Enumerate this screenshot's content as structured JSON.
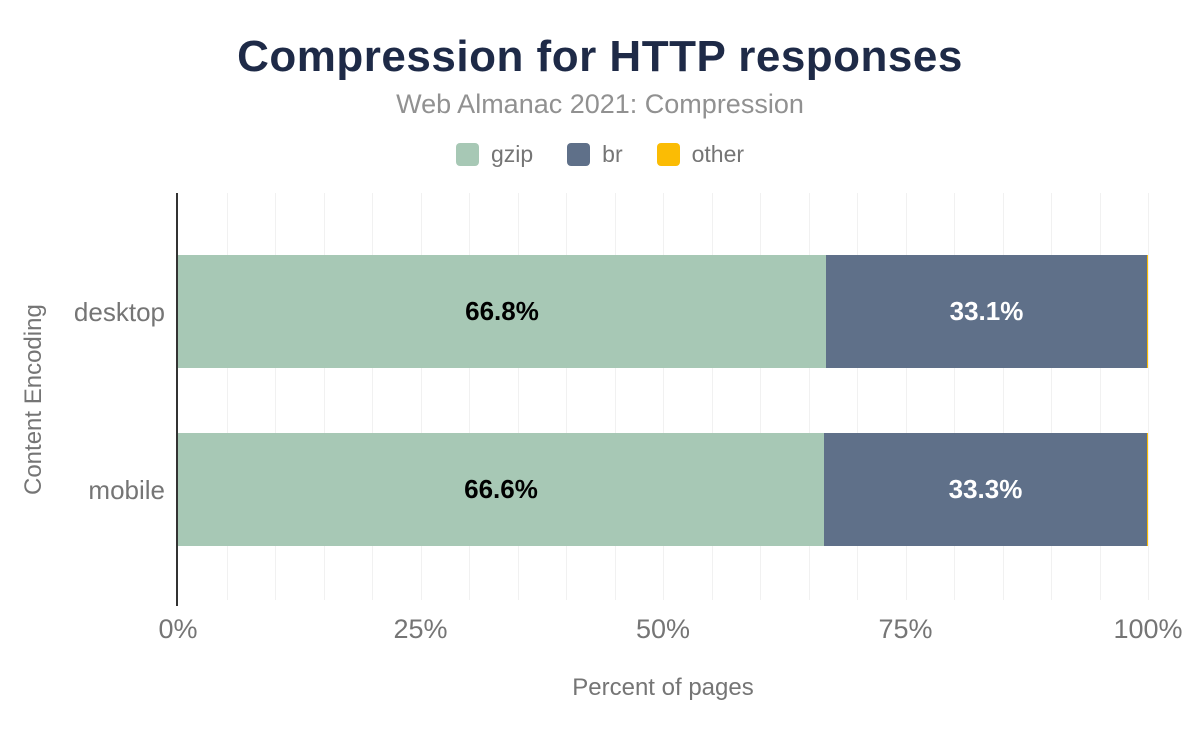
{
  "chart_data": {
    "type": "bar",
    "orientation": "horizontal",
    "stacked": true,
    "title": "Compression for HTTP responses",
    "subtitle": "Web Almanac 2021: Compression",
    "xlabel": "Percent of pages",
    "ylabel": "Content Encoding",
    "xlim": [
      0,
      100
    ],
    "grid": true,
    "grid_step": 5,
    "legend_position": "top",
    "categories": [
      "desktop",
      "mobile"
    ],
    "x_ticks": [
      {
        "label": "0%",
        "value": 0
      },
      {
        "label": "25%",
        "value": 25
      },
      {
        "label": "50%",
        "value": 50
      },
      {
        "label": "75%",
        "value": 75
      },
      {
        "label": "100%",
        "value": 100
      }
    ],
    "series": [
      {
        "name": "gzip",
        "color": "#a7c8b5",
        "label_color": "#000000",
        "values": [
          66.8,
          66.6
        ],
        "data_labels": [
          "66.8%",
          "66.6%"
        ]
      },
      {
        "name": "br",
        "color": "#5f7089",
        "label_color": "#ffffff",
        "values": [
          33.1,
          33.3
        ],
        "data_labels": [
          "33.1%",
          "33.3%"
        ]
      },
      {
        "name": "other",
        "color": "#fbbc04",
        "label_color": "#000000",
        "values": [
          0.1,
          0.1
        ],
        "data_labels": [
          "",
          ""
        ]
      }
    ]
  },
  "style": {
    "background": "#ffffff",
    "title_color": "#1e2a47",
    "subtitle_color": "#919191",
    "axis_text_color": "#757575",
    "gridline_color": "#f1f1f1",
    "axis_line_color": "#333333"
  }
}
